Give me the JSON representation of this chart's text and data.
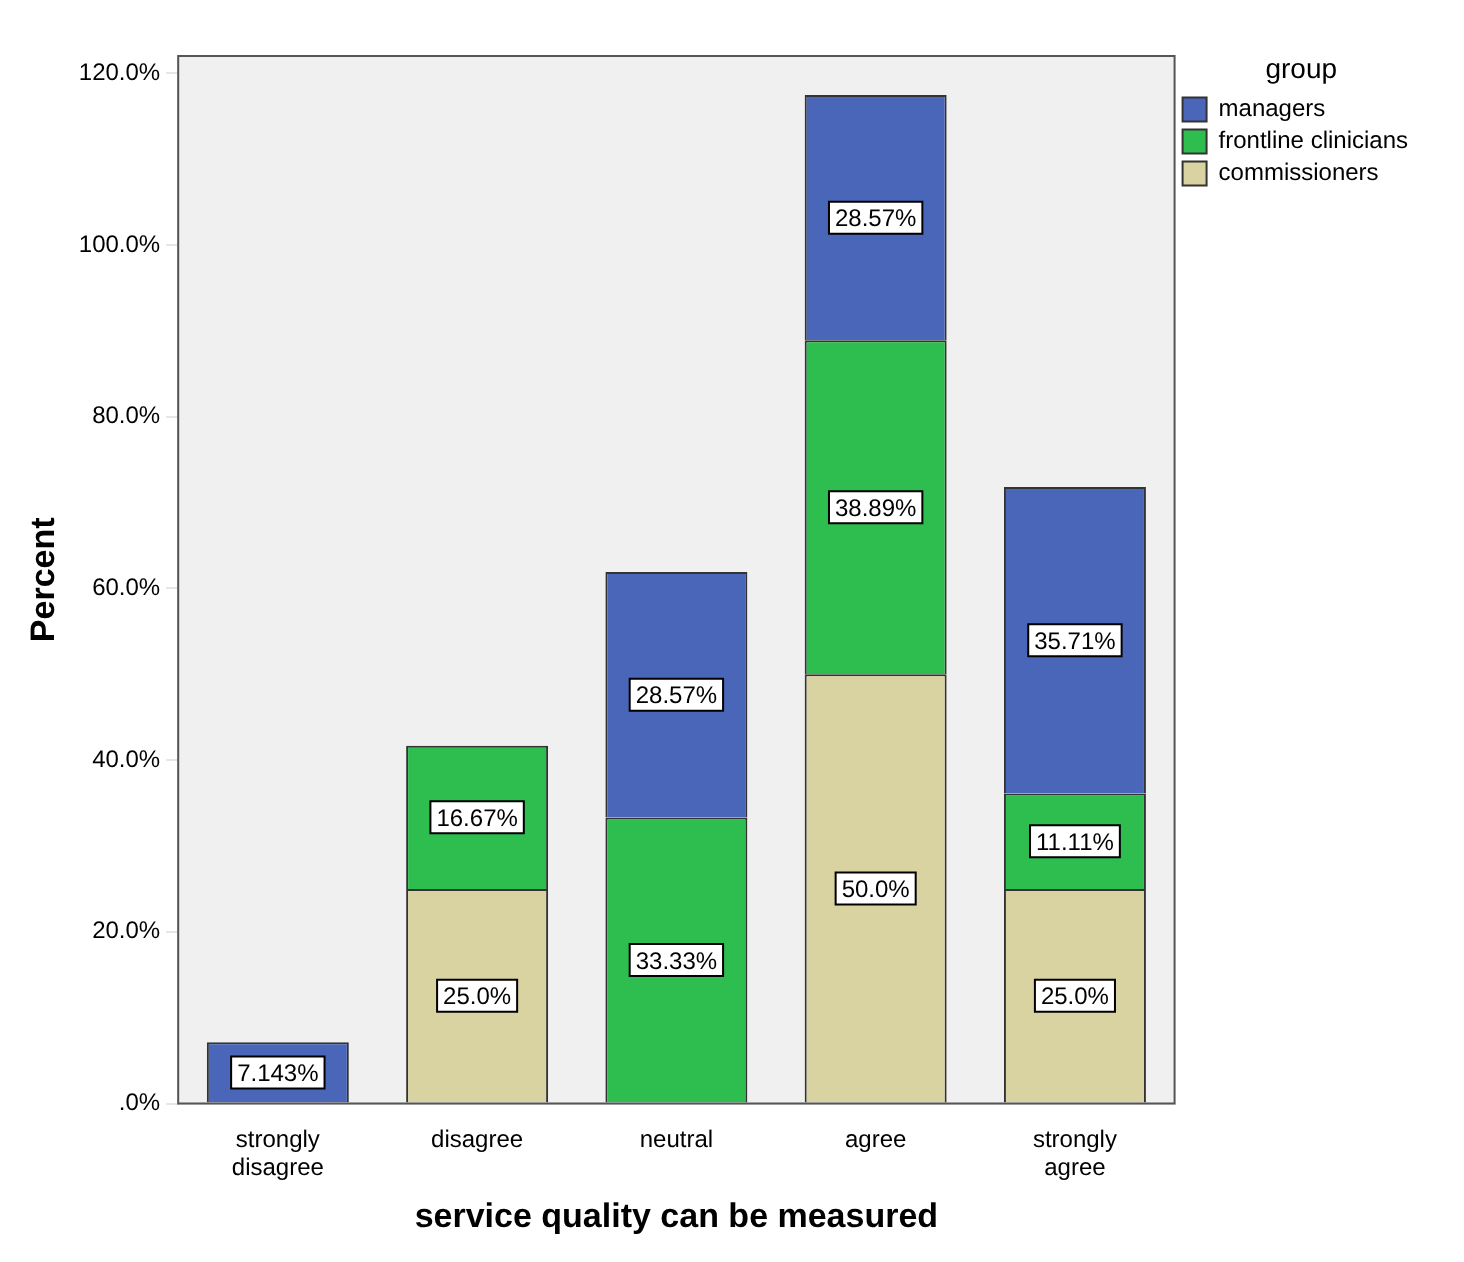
{
  "chart_data": {
    "type": "bar",
    "stacked": true,
    "xlabel": "service quality can be measured",
    "ylabel": "Percent",
    "legend_title": "group",
    "legend": "top right",
    "categories": [
      "strongly disagree",
      "disagree",
      "neutral",
      "agree",
      "strongly agree"
    ],
    "series": [
      {
        "name": "commissioners",
        "color": "#d8d3a0",
        "values": [
          null,
          25.0,
          null,
          50.0,
          25.0
        ],
        "value_labels": [
          null,
          "25.0%",
          null,
          "50.0%",
          "25.0%"
        ]
      },
      {
        "name": "frontline clinicians",
        "color": "#2ebd4f",
        "values": [
          null,
          16.67,
          33.33,
          38.89,
          11.11
        ],
        "value_labels": [
          null,
          "16.67%",
          "33.33%",
          "38.89%",
          "11.11%"
        ]
      },
      {
        "name": "managers",
        "color": "#4a66b8",
        "values": [
          7.143,
          null,
          28.57,
          28.57,
          35.71
        ],
        "value_labels": [
          "7.143%",
          null,
          "28.57%",
          "28.57%",
          "35.71%"
        ]
      }
    ],
    "ylim": [
      0,
      122
    ],
    "yticks": [
      {
        "value": 0,
        "label": ".0%"
      },
      {
        "value": 20,
        "label": "20.0%"
      },
      {
        "value": 40,
        "label": "40.0%"
      },
      {
        "value": 60,
        "label": "60.0%"
      },
      {
        "value": 80,
        "label": "80.0%"
      },
      {
        "value": 100,
        "label": "100.0%"
      },
      {
        "value": 120,
        "label": "120.0%"
      }
    ],
    "grid": false
  }
}
